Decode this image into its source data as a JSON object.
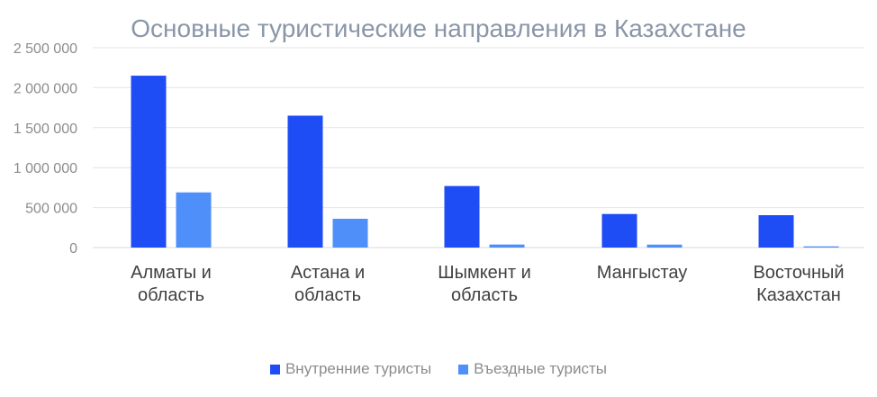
{
  "chart_data": {
    "type": "bar",
    "title": "Основные туристические  направления в Казахстане",
    "categories": [
      [
        "Алматы и",
        "область"
      ],
      [
        "Астана и",
        "область"
      ],
      [
        "Шымкент и",
        "область"
      ],
      [
        "Мангыстау"
      ],
      [
        "Восточный",
        "Казахстан"
      ]
    ],
    "series": [
      {
        "name": "Внутренние туристы",
        "color": "#1f4df5",
        "values": [
          2150000,
          1650000,
          770000,
          420000,
          405000
        ]
      },
      {
        "name": "Въездные туристы",
        "color": "#4f8ffa",
        "values": [
          690000,
          360000,
          38000,
          37000,
          15000
        ]
      }
    ],
    "yticks": [
      "0",
      "500 000",
      "1 000 000",
      "1 500 000",
      "2 000 000",
      "2 500 000"
    ],
    "ylim": [
      0,
      2500000
    ],
    "grid": true,
    "legend_position": "bottom"
  }
}
